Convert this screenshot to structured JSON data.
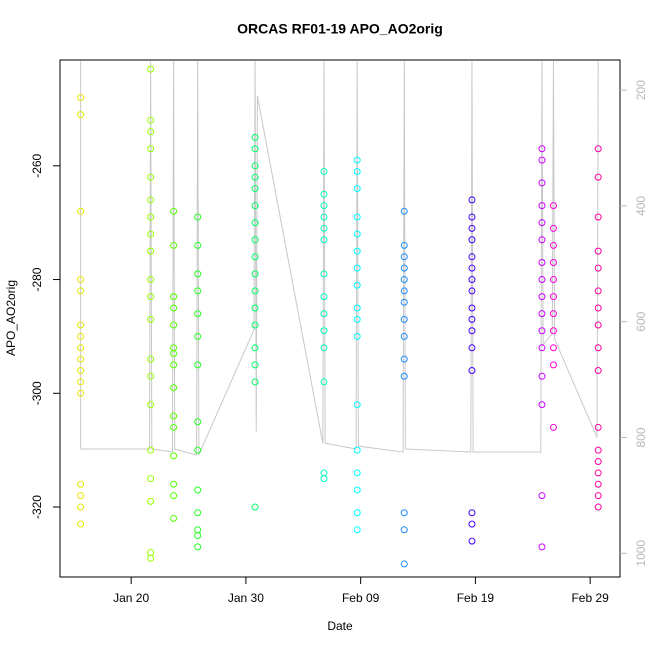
{
  "chart_data": {
    "type": "scatter",
    "title": "ORCAS RF01-19 APO_AO2orig",
    "x_label": "Date",
    "y_label": "APO_AO2orig",
    "xlim": [
      13.8,
      62.6
    ],
    "xticks": [
      {
        "value": 20,
        "label": "Jan 20"
      },
      {
        "value": 30,
        "label": "Jan 30"
      },
      {
        "value": 40,
        "label": "Feb 09"
      },
      {
        "value": 50,
        "label": "Feb 19"
      },
      {
        "value": 60,
        "label": "Feb 29"
      }
    ],
    "ylim": [
      -332.3,
      -241.4
    ],
    "yticks": [
      -320,
      -300,
      -280,
      -260
    ],
    "y2lim": [
      1041,
      148
    ],
    "y2ticks": [
      200,
      400,
      600,
      800,
      1000
    ],
    "series": [
      {
        "color": "#e6e600",
        "x": [
          15.6,
          15.6,
          15.6,
          15.6,
          15.6,
          15.6,
          15.6,
          15.6,
          15.6,
          15.6,
          15.6,
          15.6,
          15.6,
          15.6,
          15.6,
          15.6
        ],
        "values": [
          -248,
          -251,
          -268,
          -280,
          -282,
          -288,
          -290,
          -292,
          -294,
          -296,
          -298,
          -300,
          -316,
          -318,
          -320,
          -323
        ]
      },
      {
        "color": "#99ff00",
        "x": [
          21.7,
          21.7,
          21.7,
          21.7,
          21.7,
          21.7,
          21.7,
          21.7,
          21.7,
          21.7,
          21.7,
          21.7,
          21.7,
          21.7,
          21.7,
          21.7,
          21.7,
          21.7,
          21.7,
          21.7
        ],
        "values": [
          -243,
          -252,
          -254,
          -257,
          -262,
          -266,
          -269,
          -272,
          -275,
          -280,
          -283,
          -287,
          -294,
          -297,
          -302,
          -310,
          -315,
          -319,
          -328,
          -329
        ]
      },
      {
        "color": "#55ff00",
        "x": [
          23.7,
          23.7,
          23.7,
          23.7,
          23.7,
          23.7,
          23.7,
          23.7,
          23.7,
          23.7,
          23.7,
          23.7,
          23.7,
          23.7,
          23.7
        ],
        "values": [
          -268,
          -274,
          -283,
          -285,
          -288,
          -292,
          -293,
          -295,
          -299,
          -304,
          -306,
          -311,
          -316,
          -318,
          -322
        ]
      },
      {
        "color": "#22ff22",
        "x": [
          25.8,
          25.8,
          25.8,
          25.8,
          25.8,
          25.8,
          25.8,
          25.8,
          25.8,
          25.8,
          25.8,
          25.8,
          25.8,
          25.8
        ],
        "values": [
          -269,
          -274,
          -279,
          -282,
          -286,
          -290,
          -295,
          -305,
          -310,
          -317,
          -321,
          -324,
          -325,
          -327
        ]
      },
      {
        "color": "#00ff66",
        "x": [
          30.8,
          30.8,
          30.8,
          30.8,
          30.8,
          30.8,
          30.8,
          30.8,
          30.8,
          30.8,
          30.8,
          30.8,
          30.8,
          30.8,
          30.8,
          30.8,
          30.8
        ],
        "values": [
          -255,
          -257,
          -260,
          -262,
          -264,
          -267,
          -270,
          -273,
          -276,
          -279,
          -282,
          -285,
          -288,
          -292,
          -295,
          -298,
          -320
        ]
      },
      {
        "color": "#00ffbb",
        "x": [
          36.8,
          36.8,
          36.8,
          36.8,
          36.8,
          36.8,
          36.8,
          36.8,
          36.8,
          36.8,
          36.8,
          36.8,
          36.8,
          36.8
        ],
        "values": [
          -261,
          -265,
          -267,
          -269,
          -271,
          -273,
          -279,
          -283,
          -286,
          -289,
          -292,
          -298,
          -314,
          -315
        ]
      },
      {
        "color": "#00ffff",
        "x": [
          39.7,
          39.7,
          39.7,
          39.7,
          39.7,
          39.7,
          39.7,
          39.7,
          39.7,
          39.7,
          39.7,
          39.7,
          39.7,
          39.7,
          39.7,
          39.7,
          39.7
        ],
        "values": [
          -259,
          -261,
          -264,
          -269,
          -272,
          -275,
          -278,
          -281,
          -285,
          -287,
          -290,
          -302,
          -310,
          -314,
          -317,
          -321,
          -324
        ]
      },
      {
        "color": "#1a8cff",
        "x": [
          43.8,
          43.8,
          43.8,
          43.8,
          43.8,
          43.8,
          43.8,
          43.8,
          43.8,
          43.8,
          43.8,
          43.8,
          43.8,
          43.8
        ],
        "values": [
          -268,
          -274,
          -276,
          -278,
          -280,
          -282,
          -284,
          -287,
          -290,
          -294,
          -297,
          -321,
          -324,
          -330
        ]
      },
      {
        "color": "#4400ff",
        "x": [
          49.7,
          49.7,
          49.7,
          49.7,
          49.7,
          49.7,
          49.7,
          49.7,
          49.7,
          49.7,
          49.7,
          49.7,
          49.7,
          49.7,
          49.7,
          49.7
        ],
        "values": [
          -266,
          -269,
          -271,
          -273,
          -276,
          -278,
          -280,
          -282,
          -285,
          -287,
          -289,
          -292,
          -296,
          -321,
          -323,
          -326
        ]
      },
      {
        "color": "#cc00ff",
        "x": [
          55.8,
          55.8,
          55.8,
          55.8,
          55.8,
          55.8,
          55.8,
          55.8,
          55.8,
          55.8,
          55.8,
          55.8,
          55.8,
          55.8,
          55.8,
          55.8
        ],
        "values": [
          -257,
          -259,
          -263,
          -267,
          -270,
          -273,
          -277,
          -280,
          -283,
          -286,
          -289,
          -292,
          -297,
          -302,
          -318,
          -327
        ]
      },
      {
        "color": "#ff00dd",
        "x": [
          56.8,
          56.8,
          56.8,
          56.8,
          56.8,
          56.8,
          56.8,
          56.8,
          56.8,
          56.8,
          56.8
        ],
        "values": [
          -267,
          -271,
          -274,
          -277,
          -280,
          -283,
          -286,
          -289,
          -292,
          -295,
          -306
        ]
      },
      {
        "color": "#ff0099",
        "x": [
          60.7,
          60.7,
          60.7,
          60.7,
          60.7,
          60.7,
          60.7,
          60.7,
          60.7,
          60.7,
          60.7,
          60.7,
          60.7,
          60.7,
          60.7,
          60.7,
          60.7
        ],
        "values": [
          -257,
          -262,
          -269,
          -275,
          -278,
          -282,
          -285,
          -288,
          -292,
          -296,
          -306,
          -310,
          -312,
          -314,
          -316,
          -318,
          -320
        ]
      },
      {
        "color": "#c8c8c8",
        "axis": "y2",
        "line": true,
        "x": [
          15.6,
          15.6,
          15.7,
          21.6,
          21.7,
          21.8,
          23.6,
          23.7,
          23.8,
          25.7,
          25.8,
          25.9,
          30.7,
          30.8,
          30.9,
          31.0,
          36.7,
          36.8,
          36.9,
          39.6,
          39.7,
          39.8,
          43.7,
          43.8,
          43.9,
          49.6,
          49.7,
          49.8,
          55.7,
          55.8,
          55.9,
          56.7,
          56.8,
          56.9,
          60.6,
          60.7
        ],
        "values": [
          150,
          820,
          820,
          820,
          150,
          820,
          825,
          150,
          820,
          830,
          150,
          830,
          614,
          150,
          790,
          210,
          810,
          150,
          810,
          820,
          150,
          815,
          825,
          150,
          820,
          825,
          150,
          825,
          825,
          150,
          640,
          620,
          150,
          630,
          800,
          150
        ]
      }
    ]
  }
}
